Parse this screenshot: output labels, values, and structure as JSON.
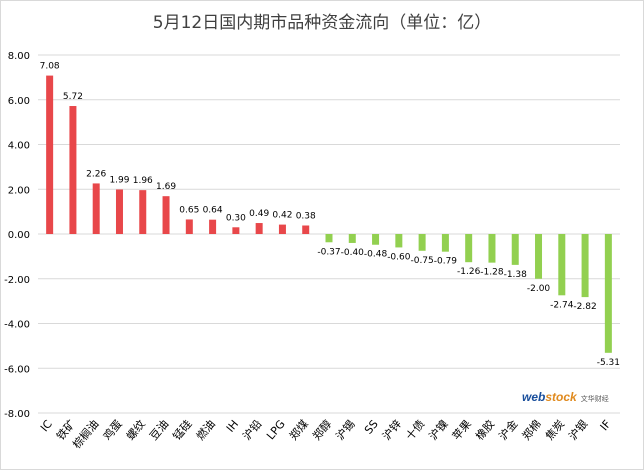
{
  "title": "5月12日国内期市品种资金流向（单位：亿）",
  "watermark": {
    "brand_main": "web",
    "brand_accent": "stock",
    "sub": "文华财经"
  },
  "colors": {
    "positive": "#e8474a",
    "negative": "#92d050",
    "grid": "#d9d9d9",
    "text": "#000000"
  },
  "chart_data": {
    "type": "bar",
    "title": "5月12日国内期市品种资金流向（单位：亿）",
    "xlabel": "",
    "ylabel": "",
    "ylim": [
      -8,
      8
    ],
    "yticks": [
      "8.00",
      "6.00",
      "4.00",
      "2.00",
      "0.00",
      "-2.00",
      "-4.00",
      "-6.00",
      "-8.00"
    ],
    "grid": true,
    "legend": "none",
    "categories": [
      "IC",
      "铁矿",
      "棕榈油",
      "鸡蛋",
      "螺纹",
      "豆油",
      "锰硅",
      "燃油",
      "IH",
      "沪铅",
      "LPG",
      "郑煤",
      "郑醇",
      "沪锡",
      "SS",
      "沪锌",
      "十债",
      "沪镍",
      "苹果",
      "橡胶",
      "沪金",
      "郑棉",
      "焦炭",
      "沪银",
      "IF"
    ],
    "values": [
      7.08,
      5.72,
      2.26,
      1.99,
      1.96,
      1.69,
      0.65,
      0.64,
      0.3,
      0.49,
      0.42,
      0.38,
      -0.37,
      -0.4,
      -0.48,
      -0.6,
      -0.75,
      -0.79,
      -1.26,
      -1.28,
      -1.38,
      -2.0,
      -2.74,
      -2.82,
      -5.31
    ],
    "labels": [
      "7.08",
      "5.72",
      "2.26",
      "1.99",
      "1.96",
      "1.69",
      "0.65",
      "0.64",
      "0.30",
      "0.49",
      "0.42",
      "0.38",
      "-0.37",
      "-0.40",
      "-0.48",
      "-0.60",
      "-0.75",
      "-0.79",
      "-1.26",
      "-1.28",
      "-1.38",
      "-2.00",
      "-2.74",
      "-2.82",
      "-5.31"
    ]
  }
}
